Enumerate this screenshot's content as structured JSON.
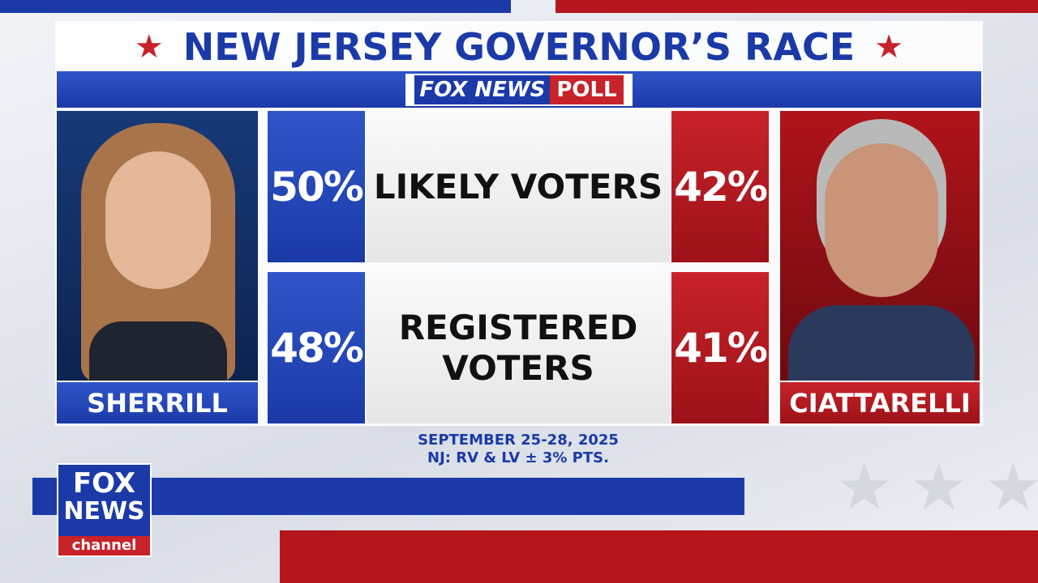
{
  "header": {
    "title": "NEW JERSEY GOVERNOR’S RACE",
    "poll_logo": {
      "brand": "FOX NEWS",
      "label": "POLL"
    }
  },
  "candidates": {
    "left": "SHERRILL",
    "right": "CIATTARELLI"
  },
  "rows": [
    {
      "label": "LIKELY VOTERS",
      "left": "50%",
      "right": "42%"
    },
    {
      "label": "REGISTERED VOTERS",
      "left": "48%",
      "right": "41%"
    }
  ],
  "footer": [
    "SEPTEMBER 25-28, 2025",
    "NJ: RV & LV ± 3% PTS."
  ],
  "channel_logo": {
    "line1": "FOX",
    "line2": "NEWS",
    "line3": "channel"
  }
}
